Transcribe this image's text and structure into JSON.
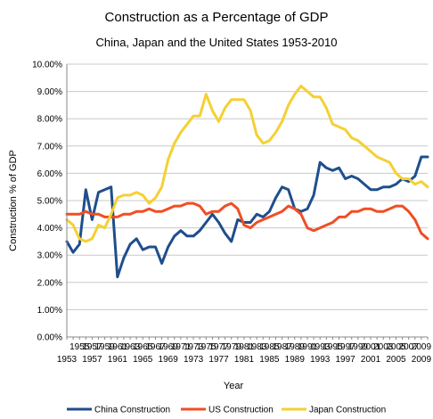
{
  "chart_data": {
    "type": "line",
    "title": "Construction as a Percentage of GDP",
    "subtitle": "China, Japan and the United States 1953-2010",
    "xlabel": "Year",
    "ylabel": "Construction % of GDP",
    "ylim": [
      0,
      10
    ],
    "yticks": [
      "0.00%",
      "1.00%",
      "2.00%",
      "3.00%",
      "4.00%",
      "5.00%",
      "6.00%",
      "7.00%",
      "8.00%",
      "9.00%",
      "10.00%"
    ],
    "grid": "horizontal",
    "legend": "bottom",
    "x": [
      1953,
      1954,
      1955,
      1956,
      1957,
      1958,
      1959,
      1960,
      1961,
      1962,
      1963,
      1964,
      1965,
      1966,
      1967,
      1968,
      1969,
      1970,
      1971,
      1972,
      1973,
      1974,
      1975,
      1976,
      1977,
      1978,
      1979,
      1980,
      1981,
      1982,
      1983,
      1984,
      1985,
      1986,
      1987,
      1988,
      1989,
      1990,
      1991,
      1992,
      1993,
      1994,
      1995,
      1996,
      1997,
      1998,
      1999,
      2000,
      2001,
      2002,
      2003,
      2004,
      2005,
      2006,
      2007,
      2008,
      2009,
      2010
    ],
    "xticks_top": [
      "1955",
      "1957",
      "1959",
      "1961",
      "1963",
      "1965",
      "1967",
      "1969",
      "1971",
      "1973",
      "1975",
      "1977",
      "1979",
      "1981",
      "1983",
      "1985",
      "1987",
      "1989",
      "1991",
      "1993",
      "1995",
      "1997",
      "1999",
      "2001",
      "2003",
      "2005",
      "2007",
      "2009"
    ],
    "xticks_top_years": [
      1955,
      1957,
      1959,
      1961,
      1963,
      1965,
      1967,
      1969,
      1971,
      1973,
      1975,
      1977,
      1979,
      1981,
      1983,
      1985,
      1987,
      1989,
      1991,
      1993,
      1995,
      1997,
      1999,
      2001,
      2003,
      2005,
      2007,
      2009
    ],
    "xticks_bottom": [
      "1953",
      "1957",
      "1961",
      "1965",
      "1969",
      "1973",
      "1977",
      "1981",
      "1985",
      "1989",
      "1993",
      "1997",
      "2001",
      "2005",
      "2009"
    ],
    "xticks_bottom_years": [
      1953,
      1957,
      1961,
      1965,
      1969,
      1973,
      1977,
      1981,
      1985,
      1989,
      1993,
      1997,
      2001,
      2005,
      2009
    ],
    "series": [
      {
        "name": "China Construction",
        "color": "#1f4e8c",
        "values": [
          3.5,
          3.1,
          3.4,
          5.4,
          4.3,
          5.3,
          5.4,
          5.5,
          2.2,
          2.9,
          3.4,
          3.6,
          3.2,
          3.3,
          3.3,
          2.7,
          3.3,
          3.7,
          3.9,
          3.7,
          3.7,
          3.9,
          4.2,
          4.5,
          4.2,
          3.8,
          3.5,
          4.3,
          4.2,
          4.2,
          4.5,
          4.4,
          4.6,
          5.1,
          5.5,
          5.4,
          4.7,
          4.6,
          4.7,
          5.2,
          6.4,
          6.2,
          6.1,
          6.2,
          5.8,
          5.9,
          5.8,
          5.6,
          5.4,
          5.4,
          5.5,
          5.5,
          5.6,
          5.8,
          5.7,
          5.9,
          6.6,
          6.6
        ]
      },
      {
        "name": "US Construction",
        "color": "#f04e23",
        "values": [
          4.5,
          4.5,
          4.5,
          4.6,
          4.5,
          4.5,
          4.4,
          4.4,
          4.4,
          4.5,
          4.5,
          4.6,
          4.6,
          4.7,
          4.6,
          4.6,
          4.7,
          4.8,
          4.8,
          4.9,
          4.9,
          4.8,
          4.5,
          4.6,
          4.6,
          4.8,
          4.9,
          4.7,
          4.1,
          4.0,
          4.2,
          4.3,
          4.4,
          4.5,
          4.6,
          4.8,
          4.7,
          4.5,
          4.0,
          3.9,
          4.0,
          4.1,
          4.2,
          4.4,
          4.4,
          4.6,
          4.6,
          4.7,
          4.7,
          4.6,
          4.6,
          4.7,
          4.8,
          4.8,
          4.6,
          4.3,
          3.8,
          3.6
        ]
      },
      {
        "name": "Japan Construction",
        "color": "#f5d033",
        "values": [
          4.3,
          4.1,
          3.6,
          3.5,
          3.6,
          4.1,
          4.0,
          4.5,
          5.1,
          5.2,
          5.2,
          5.3,
          5.2,
          4.9,
          5.1,
          5.5,
          6.5,
          7.1,
          7.5,
          7.8,
          8.1,
          8.1,
          8.9,
          8.3,
          7.9,
          8.4,
          8.7,
          8.7,
          8.7,
          8.3,
          7.4,
          7.1,
          7.2,
          7.5,
          7.9,
          8.5,
          8.9,
          9.2,
          9.0,
          8.8,
          8.8,
          8.4,
          7.8,
          7.7,
          7.6,
          7.3,
          7.2,
          7.0,
          6.8,
          6.6,
          6.5,
          6.4,
          6.0,
          5.8,
          5.8,
          5.6,
          5.7,
          5.5
        ]
      }
    ]
  }
}
